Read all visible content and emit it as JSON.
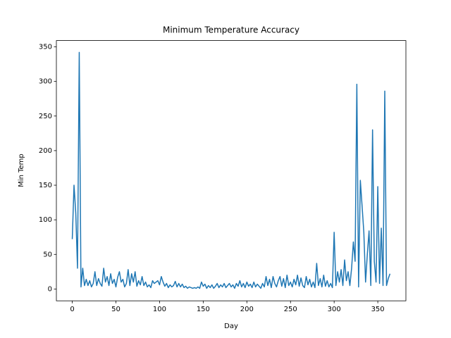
{
  "chart_data": {
    "type": "line",
    "title": "Minimum Temperature Accuracy",
    "x_label": "Day",
    "y_label": "Min Temp",
    "x": [
      0,
      2,
      4,
      6,
      8,
      10,
      12,
      14,
      16,
      18,
      20,
      22,
      24,
      26,
      28,
      30,
      32,
      34,
      36,
      38,
      40,
      42,
      44,
      46,
      48,
      50,
      52,
      54,
      56,
      58,
      60,
      62,
      64,
      66,
      68,
      70,
      72,
      74,
      76,
      78,
      80,
      82,
      84,
      86,
      88,
      90,
      92,
      94,
      96,
      98,
      100,
      102,
      104,
      106,
      108,
      110,
      112,
      114,
      116,
      118,
      120,
      122,
      124,
      126,
      128,
      130,
      132,
      134,
      136,
      138,
      140,
      142,
      144,
      146,
      148,
      150,
      152,
      154,
      156,
      158,
      160,
      162,
      164,
      166,
      168,
      170,
      172,
      174,
      176,
      178,
      180,
      182,
      184,
      186,
      188,
      190,
      192,
      194,
      196,
      198,
      200,
      202,
      204,
      206,
      208,
      210,
      212,
      214,
      216,
      218,
      220,
      222,
      224,
      226,
      228,
      230,
      232,
      234,
      236,
      238,
      240,
      242,
      244,
      246,
      248,
      250,
      252,
      254,
      256,
      258,
      260,
      262,
      264,
      266,
      268,
      270,
      272,
      274,
      276,
      278,
      280,
      282,
      284,
      286,
      288,
      290,
      292,
      294,
      296,
      298,
      300,
      302,
      304,
      306,
      308,
      310,
      312,
      314,
      316,
      318,
      320,
      322,
      324,
      326,
      328,
      330,
      332,
      334,
      336,
      338,
      340,
      342,
      344,
      346,
      348,
      350,
      352,
      354,
      356,
      358,
      360,
      362,
      364
    ],
    "series": [
      {
        "name": "Min Temp",
        "color": "#1f77b4",
        "values": [
          72,
          150,
          110,
          30,
          342,
          3,
          30,
          5,
          14,
          5,
          12,
          3,
          8,
          25,
          5,
          15,
          8,
          4,
          30,
          10,
          18,
          5,
          22,
          8,
          14,
          3,
          17,
          25,
          10,
          14,
          3,
          8,
          28,
          5,
          22,
          10,
          25,
          4,
          12,
          6,
          18,
          5,
          10,
          3,
          6,
          2,
          12,
          8,
          10,
          12,
          6,
          18,
          10,
          4,
          8,
          2,
          6,
          3,
          5,
          11,
          3,
          8,
          3,
          7,
          2,
          4,
          1,
          3,
          2,
          1,
          2,
          1,
          3,
          1,
          10,
          4,
          7,
          1,
          5,
          2,
          6,
          1,
          4,
          8,
          2,
          6,
          3,
          8,
          2,
          5,
          8,
          3,
          6,
          1,
          8,
          4,
          12,
          3,
          8,
          2,
          10,
          4,
          7,
          2,
          10,
          3,
          7,
          4,
          1,
          8,
          3,
          18,
          5,
          14,
          2,
          18,
          8,
          3,
          12,
          18,
          4,
          15,
          2,
          20,
          5,
          10,
          3,
          14,
          6,
          20,
          4,
          16,
          5,
          2,
          18,
          6,
          14,
          3,
          10,
          2,
          37,
          5,
          15,
          3,
          20,
          4,
          12,
          3,
          8,
          2,
          82,
          5,
          25,
          10,
          28,
          5,
          42,
          12,
          25,
          5,
          30,
          68,
          40,
          296,
          3,
          157,
          120,
          82,
          10,
          50,
          84,
          5,
          230,
          40,
          10,
          148,
          8,
          88,
          5,
          286,
          5,
          15,
          22
        ]
      }
    ],
    "xlim": [
      -18.2,
      382.2
    ],
    "ylim": [
      -17.1,
      359.1
    ],
    "xticks": [
      0,
      50,
      100,
      150,
      200,
      250,
      300,
      350
    ],
    "yticks": [
      0,
      50,
      100,
      150,
      200,
      250,
      300,
      350
    ]
  }
}
